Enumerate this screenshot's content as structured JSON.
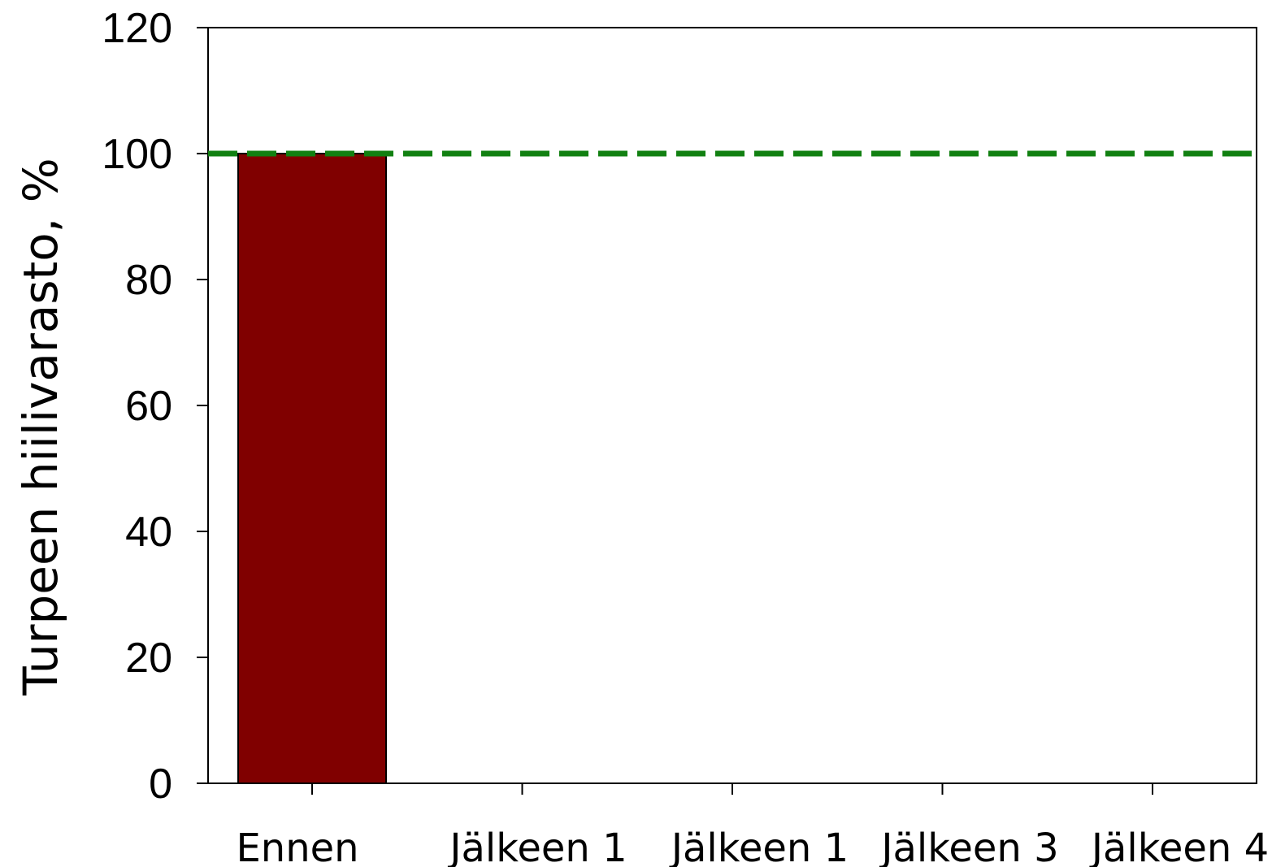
{
  "chart_data": {
    "type": "bar",
    "title": "",
    "xlabel": "",
    "ylabel": "Turpeen hiilivarasto, %",
    "ylim": [
      0,
      120
    ],
    "yticks": [
      "0",
      "20",
      "40",
      "60",
      "80",
      "100",
      "120"
    ],
    "categories": [
      "Ennen",
      "Jälkeen 1",
      "Jälkeen 1",
      "Jälkeen 3",
      "Jälkeen 4"
    ],
    "values": [
      100,
      null,
      null,
      null,
      null
    ],
    "bar_color": "#800000",
    "reference_line": {
      "y": 100,
      "style": "dashed",
      "color": "#118011"
    },
    "grid": false,
    "legend": "none"
  }
}
